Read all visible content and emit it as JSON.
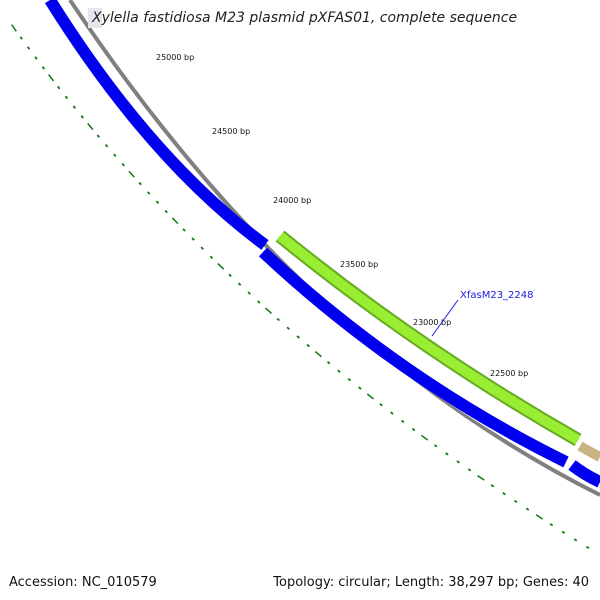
{
  "title": "Xylella fastidiosa M23 plasmid pXFAS01, complete sequence",
  "footer": {
    "accession_label": "Accession:",
    "accession": "NC_010579",
    "topology_text": "Topology: circular; Length: 38,297 bp; Genes: 40"
  },
  "colors": {
    "cds_forward": "#0000ee",
    "cds_highlight": "#99ee33",
    "cds_highlight_edge": "#66aa22",
    "cds_other": "#c8b482",
    "backbone": "#808080",
    "tick": "#117711",
    "label": "#1a1adf"
  },
  "ticks": [
    {
      "label": "25000 bp"
    },
    {
      "label": "24500 bp"
    },
    {
      "label": "24000 bp"
    },
    {
      "label": "23500 bp"
    },
    {
      "label": "23000 bp"
    },
    {
      "label": "22500 bp"
    }
  ],
  "genes": [
    {
      "name": "XfasM23_2248"
    }
  ]
}
